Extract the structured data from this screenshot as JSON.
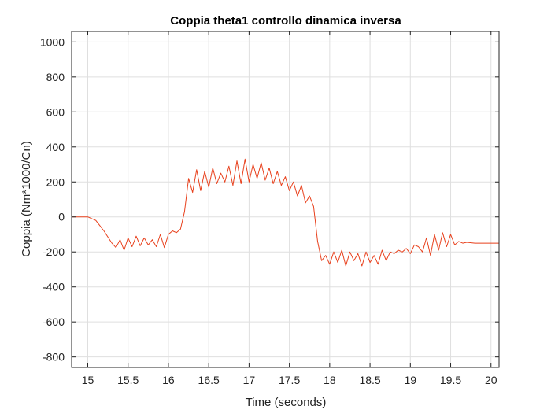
{
  "chart_data": {
    "type": "line",
    "title": "Coppia theta1 controllo dinamica inversa",
    "xlabel": "Time (seconds)",
    "ylabel": "Coppia (Nm*1000/Cn)",
    "xlim": [
      14.8,
      20.1
    ],
    "ylim": [
      -860,
      1060
    ],
    "xticks": [
      15,
      15.5,
      16,
      16.5,
      17,
      17.5,
      18,
      18.5,
      19,
      19.5,
      20
    ],
    "xtick_labels": [
      "15",
      "15.5",
      "16",
      "16.5",
      "17",
      "17.5",
      "18",
      "18.5",
      "19",
      "19.5",
      "20"
    ],
    "yticks": [
      -800,
      -600,
      -400,
      -200,
      0,
      200,
      400,
      600,
      800,
      1000
    ],
    "ytick_labels": [
      "-800",
      "-600",
      "-400",
      "-200",
      "0",
      "200",
      "400",
      "600",
      "800",
      "1000"
    ],
    "grid": true,
    "series": [
      {
        "color": "#e8401c",
        "x": [
          14.8,
          15.0,
          15.1,
          15.2,
          15.3,
          15.35,
          15.4,
          15.45,
          15.5,
          15.55,
          15.6,
          15.65,
          15.7,
          15.75,
          15.8,
          15.85,
          15.9,
          15.95,
          16.0,
          16.05,
          16.1,
          16.15,
          16.2,
          16.25,
          16.3,
          16.35,
          16.4,
          16.45,
          16.5,
          16.55,
          16.6,
          16.65,
          16.7,
          16.75,
          16.8,
          16.85,
          16.9,
          16.95,
          17.0,
          17.05,
          17.1,
          17.15,
          17.2,
          17.25,
          17.3,
          17.35,
          17.4,
          17.45,
          17.5,
          17.55,
          17.6,
          17.65,
          17.7,
          17.75,
          17.8,
          17.85,
          17.9,
          17.95,
          18.0,
          18.05,
          18.1,
          18.15,
          18.2,
          18.25,
          18.3,
          18.35,
          18.4,
          18.45,
          18.5,
          18.55,
          18.6,
          18.65,
          18.7,
          18.75,
          18.8,
          18.85,
          18.9,
          18.95,
          19.0,
          19.05,
          19.1,
          19.15,
          19.2,
          19.25,
          19.3,
          19.35,
          19.4,
          19.45,
          19.5,
          19.55,
          19.6,
          19.65,
          19.7,
          19.8,
          19.9,
          20.0,
          20.1
        ],
        "y": [
          0,
          0,
          -20,
          -80,
          -150,
          -175,
          -130,
          -190,
          -120,
          -170,
          -110,
          -165,
          -120,
          -160,
          -130,
          -170,
          -100,
          -175,
          -100,
          -80,
          -90,
          -70,
          30,
          220,
          140,
          270,
          150,
          260,
          170,
          280,
          190,
          250,
          200,
          290,
          180,
          320,
          190,
          330,
          200,
          300,
          220,
          310,
          210,
          280,
          190,
          260,
          180,
          230,
          150,
          200,
          120,
          180,
          80,
          120,
          60,
          -140,
          -250,
          -220,
          -270,
          -200,
          -260,
          -190,
          -280,
          -200,
          -250,
          -210,
          -280,
          -200,
          -260,
          -220,
          -270,
          -190,
          -250,
          -200,
          -210,
          -190,
          -200,
          -180,
          -210,
          -160,
          -170,
          -200,
          -120,
          -220,
          -100,
          -190,
          -90,
          -170,
          -100,
          -160,
          -140,
          -150,
          -145,
          -150,
          -150,
          -150,
          -150
        ]
      }
    ]
  }
}
